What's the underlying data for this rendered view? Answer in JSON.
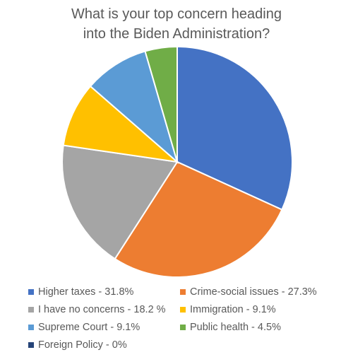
{
  "chart_data": {
    "type": "pie",
    "title_lines": [
      "What is your top concern heading",
      "into the Biden Administration?"
    ],
    "slices": [
      {
        "label": "Higher taxes - 31.8%",
        "value": 31.8,
        "color": "#4472C4"
      },
      {
        "label": "Crime-social issues - 27.3%",
        "value": 27.3,
        "color": "#ED7D31"
      },
      {
        "label": "I have no concerns - 18.2 %",
        "value": 18.2,
        "color": "#A5A5A5"
      },
      {
        "label": "Immigration - 9.1%",
        "value": 9.1,
        "color": "#FFC000"
      },
      {
        "label": "Supreme Court - 9.1%",
        "value": 9.1,
        "color": "#5B9BD5"
      },
      {
        "label": "Public health - 4.5%",
        "value": 4.5,
        "color": "#70AD47"
      },
      {
        "label": "Foreign Policy - 0%",
        "value": 0,
        "color": "#264478"
      }
    ],
    "legend_position": "bottom"
  }
}
